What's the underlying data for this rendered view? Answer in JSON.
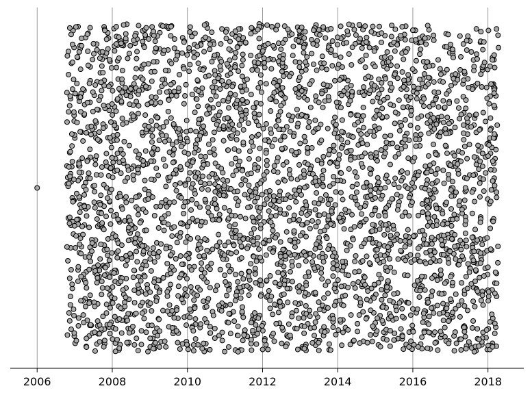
{
  "chart_data": {
    "type": "scatter",
    "title": "",
    "xlabel": "",
    "ylabel": "",
    "x_axis": {
      "type": "time",
      "range": [
        "2005-04-15",
        "2018-12-15"
      ],
      "ticks": [
        "2006",
        "2008",
        "2010",
        "2012",
        "2014",
        "2016",
        "2018"
      ]
    },
    "y_axis": {
      "visible": false,
      "range": [
        -0.05,
        1.05
      ]
    },
    "grid": {
      "x": true,
      "y": false
    },
    "legend": "none",
    "colors": {
      "marker_fill": "#aaaaaa",
      "marker_edge": "#000000",
      "grid_line": "#808080",
      "axis_line": "#000000"
    },
    "series": [
      {
        "points": [
          {
            "x": "2006-01-01",
            "y": 0.5
          }
        ]
      },
      {
        "x_range": [
          "2006-10-15",
          "2018-04-15"
        ],
        "y_range": [
          0,
          1
        ],
        "count": 3500,
        "distribution": "uniform"
      }
    ]
  }
}
